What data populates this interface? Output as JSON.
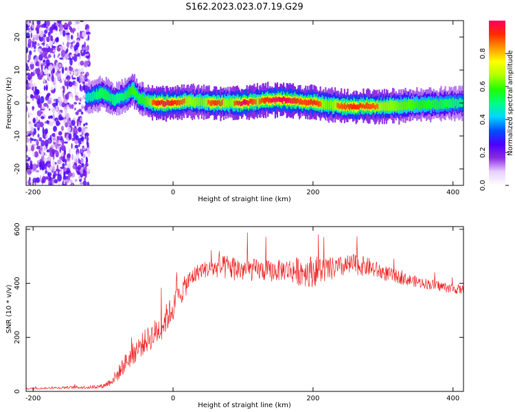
{
  "title": "S162.2023.023.07.19.G29",
  "chart_data": [
    {
      "type": "heatmap",
      "xlabel": "Height of straight line (km)",
      "ylabel": "Frequency (Hz)",
      "xlim": [
        -210,
        415
      ],
      "ylim": [
        -25,
        25
      ],
      "xticks": [
        -200,
        0,
        200,
        400
      ],
      "yticks": [
        -20,
        -10,
        0,
        10,
        20
      ],
      "colorbar": {
        "label": "Normalized spectral amplitude",
        "range": [
          0,
          1
        ],
        "ticks": [
          0.0,
          0.2,
          0.4,
          0.6,
          0.8
        ],
        "colors": [
          "#ffffff",
          "#e8d0ff",
          "#8a2be2",
          "#4b00ff",
          "#0050ff",
          "#00d8ff",
          "#00ff80",
          "#20ff00",
          "#b0ff00",
          "#ffff00",
          "#ff9900",
          "#ff2a00",
          "#ff0060"
        ]
      },
      "ridge": [
        {
          "x": -125,
          "f": 1.5,
          "a": 0.25
        },
        {
          "x": -100,
          "f": 3.0,
          "a": 0.45
        },
        {
          "x": -85,
          "f": 1.0,
          "a": 0.35
        },
        {
          "x": -70,
          "f": 2.0,
          "a": 0.4
        },
        {
          "x": -58,
          "f": 4.0,
          "a": 0.55
        },
        {
          "x": -50,
          "f": 1.5,
          "a": 0.45
        },
        {
          "x": -40,
          "f": 0.5,
          "a": 0.55
        },
        {
          "x": -20,
          "f": 0.0,
          "a": 0.8
        },
        {
          "x": 0,
          "f": 0.0,
          "a": 0.75
        },
        {
          "x": 20,
          "f": 0.5,
          "a": 0.65
        },
        {
          "x": 40,
          "f": 0.3,
          "a": 0.6
        },
        {
          "x": 60,
          "f": 0.0,
          "a": 0.75
        },
        {
          "x": 80,
          "f": 0.0,
          "a": 0.6
        },
        {
          "x": 100,
          "f": 0.0,
          "a": 0.85
        },
        {
          "x": 120,
          "f": 0.5,
          "a": 0.65
        },
        {
          "x": 140,
          "f": 1.0,
          "a": 0.8
        },
        {
          "x": 160,
          "f": 1.0,
          "a": 0.85
        },
        {
          "x": 180,
          "f": 0.5,
          "a": 0.7
        },
        {
          "x": 200,
          "f": 0.0,
          "a": 0.75
        },
        {
          "x": 220,
          "f": -0.5,
          "a": 0.6
        },
        {
          "x": 240,
          "f": -1.0,
          "a": 0.7
        },
        {
          "x": 260,
          "f": -1.0,
          "a": 0.75
        },
        {
          "x": 280,
          "f": -1.0,
          "a": 0.7
        },
        {
          "x": 300,
          "f": -1.0,
          "a": 0.65
        },
        {
          "x": 320,
          "f": -1.0,
          "a": 0.6
        },
        {
          "x": 340,
          "f": -0.5,
          "a": 0.55
        },
        {
          "x": 360,
          "f": -0.5,
          "a": 0.5
        },
        {
          "x": 380,
          "f": -0.5,
          "a": 0.45
        },
        {
          "x": 400,
          "f": 0.0,
          "a": 0.4
        },
        {
          "x": 415,
          "f": 0.0,
          "a": 0.35
        }
      ],
      "noise_region": {
        "x": [
          -210,
          -120
        ],
        "f": [
          -25,
          25
        ]
      }
    },
    {
      "type": "line",
      "xlabel": "Height of straight line (km)",
      "ylabel": "SNR (10 * v/v)",
      "xlim": [
        -210,
        415
      ],
      "ylim": [
        0,
        610
      ],
      "xticks": [
        -200,
        0,
        200,
        400
      ],
      "yticks": [
        0,
        200,
        400,
        600
      ],
      "series": [
        {
          "color": "#ee2222",
          "x": [
            -210,
            -180,
            -150,
            -120,
            -100,
            -90,
            -80,
            -70,
            -60,
            -50,
            -40,
            -30,
            -20,
            -10,
            0,
            10,
            20,
            30,
            40,
            60,
            80,
            100,
            120,
            140,
            160,
            180,
            200,
            220,
            240,
            260,
            280,
            300,
            320,
            340,
            360,
            380,
            400,
            415
          ],
          "y": [
            10,
            12,
            15,
            15,
            20,
            35,
            60,
            100,
            130,
            160,
            185,
            205,
            230,
            270,
            310,
            360,
            400,
            430,
            450,
            455,
            460,
            450,
            450,
            445,
            450,
            445,
            445,
            450,
            460,
            470,
            460,
            440,
            425,
            410,
            400,
            390,
            380,
            375
          ],
          "noise": [
            3,
            3,
            5,
            6,
            8,
            15,
            25,
            35,
            40,
            45,
            45,
            50,
            55,
            55,
            50,
            45,
            40,
            35,
            30,
            35,
            50,
            45,
            40,
            40,
            40,
            55,
            60,
            45,
            40,
            40,
            35,
            30,
            25,
            22,
            20,
            20,
            18,
            18
          ]
        }
      ]
    }
  ]
}
